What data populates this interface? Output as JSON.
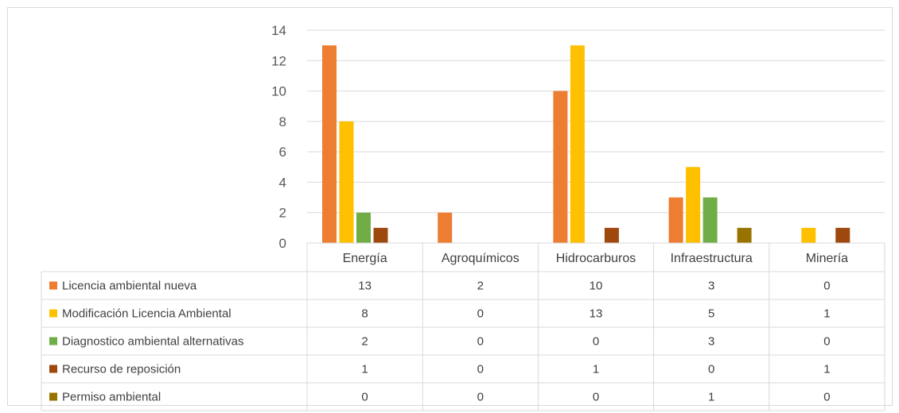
{
  "chart_data": {
    "type": "bar",
    "title": "",
    "xlabel": "",
    "ylabel": "",
    "ylim": [
      0,
      14
    ],
    "yticks": [
      0,
      2,
      4,
      6,
      8,
      10,
      12,
      14
    ],
    "grid": true,
    "legend": "data-table",
    "categories": [
      "Energía",
      "Agroquímicos",
      "Hidrocarburos",
      "Infraestructura",
      "Minería"
    ],
    "series": [
      {
        "name": "Licencia ambiental nueva",
        "color": "#ed7d31",
        "values": [
          13,
          2,
          10,
          3,
          0
        ]
      },
      {
        "name": "Modificación Licencia Ambiental",
        "color": "#ffc000",
        "values": [
          8,
          0,
          13,
          5,
          1
        ]
      },
      {
        "name": "Diagnostico ambiental alternativas",
        "color": "#70ad47",
        "values": [
          2,
          0,
          0,
          3,
          0
        ]
      },
      {
        "name": "Recurso de reposición",
        "color": "#9e480e",
        "values": [
          1,
          0,
          1,
          0,
          1
        ]
      },
      {
        "name": "Permiso ambiental",
        "color": "#997300",
        "values": [
          0,
          0,
          0,
          1,
          0
        ]
      }
    ]
  }
}
